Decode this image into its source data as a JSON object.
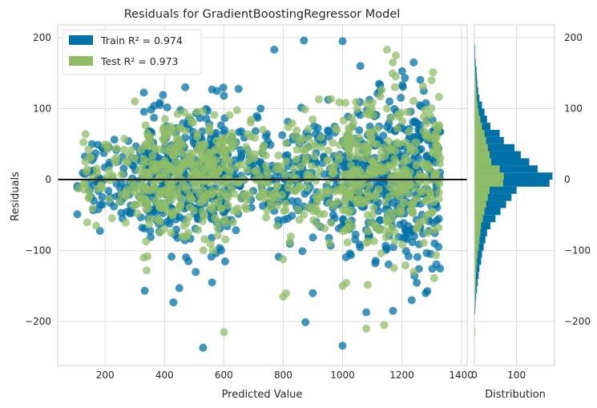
{
  "chart_data": [
    {
      "type": "scatter",
      "title": "Residuals for GradientBoostingRegressor Model",
      "xlabel": "Predicted Value",
      "ylabel": "Residuals",
      "xlim": [
        40,
        1420
      ],
      "ylim": [
        -262,
        218
      ],
      "x_ticks": [
        200,
        400,
        600,
        800,
        1000,
        1200,
        1400
      ],
      "x_tick_labels": [
        "200",
        "400",
        "600",
        "800",
        "1000",
        "1200",
        "1400"
      ],
      "y_ticks": [
        -200,
        -100,
        0,
        100,
        200
      ],
      "y_tick_labels": [
        "−200",
        "−100",
        "0",
        "100",
        "200"
      ],
      "grid": true,
      "legend_position": "top-left",
      "reference_line_y": 0,
      "series": [
        {
          "name": "Train",
          "legend_label": "Train R² = 0.974",
          "color": "#0072a7",
          "cluster_centers_x": [
            300,
            460,
            600,
            830,
            1130,
            1210
          ],
          "clusters": [
            {
              "x_range": [
                105,
                330
              ],
              "y_center": 0,
              "y_spread": 30,
              "count": 90
            },
            {
              "x_range": [
                330,
                620
              ],
              "y_center": 0,
              "y_spread": 45,
              "count": 360
            },
            {
              "x_range": [
                620,
                900
              ],
              "y_center": 5,
              "y_spread": 40,
              "count": 170
            },
            {
              "x_range": [
                900,
                1000
              ],
              "y_center": 0,
              "y_spread": 45,
              "count": 60
            },
            {
              "x_range": [
                1000,
                1330
              ],
              "y_center": 0,
              "y_spread": 60,
              "count": 420
            }
          ],
          "outliers": [
            {
              "x": 770,
              "y": 183
            },
            {
              "x": 1000,
              "y": 195
            },
            {
              "x": 870,
              "y": 196
            },
            {
              "x": 530,
              "y": -237
            },
            {
              "x": 1000,
              "y": -234
            },
            {
              "x": 875,
              "y": -201
            },
            {
              "x": 470,
              "y": 130
            },
            {
              "x": 560,
              "y": 127
            },
            {
              "x": 600,
              "y": 118
            },
            {
              "x": 430,
              "y": -173
            },
            {
              "x": 450,
              "y": -153
            },
            {
              "x": 560,
              "y": -145
            },
            {
              "x": 1080,
              "y": -187
            },
            {
              "x": 1170,
              "y": -185
            },
            {
              "x": 1280,
              "y": -160
            },
            {
              "x": 1240,
              "y": 165
            },
            {
              "x": 1310,
              "y": -90
            },
            {
              "x": 900,
              "y": -160
            }
          ]
        },
        {
          "name": "Test",
          "legend_label": "Test R² = 0.973",
          "color": "#8fbc67",
          "clusters": [
            {
              "x_range": [
                110,
                330
              ],
              "y_center": 0,
              "y_spread": 30,
              "count": 70
            },
            {
              "x_range": [
                330,
                620
              ],
              "y_center": 5,
              "y_spread": 40,
              "count": 330
            },
            {
              "x_range": [
                620,
                900
              ],
              "y_center": 5,
              "y_spread": 40,
              "count": 130
            },
            {
              "x_range": [
                900,
                1000
              ],
              "y_center": 5,
              "y_spread": 40,
              "count": 50
            },
            {
              "x_range": [
                1000,
                1330
              ],
              "y_center": 0,
              "y_spread": 60,
              "count": 330
            }
          ],
          "outliers": [
            {
              "x": 1080,
              "y": -210
            },
            {
              "x": 1140,
              "y": -205
            },
            {
              "x": 600,
              "y": -215
            },
            {
              "x": 800,
              "y": -165
            },
            {
              "x": 810,
              "y": -160
            },
            {
              "x": 1180,
              "y": 175
            },
            {
              "x": 1170,
              "y": 165
            },
            {
              "x": 1300,
              "y": 140
            },
            {
              "x": 1150,
              "y": 183
            },
            {
              "x": 170,
              "y": -65
            },
            {
              "x": 1240,
              "y": -130
            },
            {
              "x": 920,
              "y": 113
            },
            {
              "x": 300,
              "y": 110
            },
            {
              "x": 1000,
              "y": -150
            },
            {
              "x": 330,
              "y": -110
            }
          ]
        }
      ]
    },
    {
      "type": "bar",
      "orientation": "horizontal",
      "title": "",
      "xlabel": "Distribution",
      "xlim": [
        0,
        190
      ],
      "x_ticks": [
        0,
        100
      ],
      "x_tick_labels": [
        "0",
        "100"
      ],
      "y_tick_labels": [
        "200",
        "100",
        "0",
        "−100",
        "−200"
      ],
      "y_ticks": [
        200,
        100,
        0,
        -100,
        -200
      ],
      "bin_width": 10,
      "series": [
        {
          "name": "Train",
          "color": "#0072a7",
          "bins": [
            {
              "y0": -250,
              "count": 1
            },
            {
              "y0": -240,
              "count": 0
            },
            {
              "y0": -230,
              "count": 1
            },
            {
              "y0": -220,
              "count": 0
            },
            {
              "y0": -210,
              "count": 1
            },
            {
              "y0": -200,
              "count": 1
            },
            {
              "y0": -190,
              "count": 2
            },
            {
              "y0": -180,
              "count": 3
            },
            {
              "y0": -170,
              "count": 4
            },
            {
              "y0": -160,
              "count": 6
            },
            {
              "y0": -150,
              "count": 8
            },
            {
              "y0": -140,
              "count": 10
            },
            {
              "y0": -130,
              "count": 12
            },
            {
              "y0": -120,
              "count": 16
            },
            {
              "y0": -110,
              "count": 18
            },
            {
              "y0": -100,
              "count": 22
            },
            {
              "y0": -90,
              "count": 26
            },
            {
              "y0": -80,
              "count": 30
            },
            {
              "y0": -70,
              "count": 38
            },
            {
              "y0": -60,
              "count": 50
            },
            {
              "y0": -50,
              "count": 62
            },
            {
              "y0": -40,
              "count": 75
            },
            {
              "y0": -30,
              "count": 88
            },
            {
              "y0": -20,
              "count": 100
            },
            {
              "y0": -10,
              "count": 178
            },
            {
              "y0": 0,
              "count": 185
            },
            {
              "y0": 10,
              "count": 150
            },
            {
              "y0": 20,
              "count": 130
            },
            {
              "y0": 30,
              "count": 110
            },
            {
              "y0": 40,
              "count": 95
            },
            {
              "y0": 50,
              "count": 70
            },
            {
              "y0": 60,
              "count": 60
            },
            {
              "y0": 70,
              "count": 38
            },
            {
              "y0": 80,
              "count": 30
            },
            {
              "y0": 90,
              "count": 24
            },
            {
              "y0": 100,
              "count": 18
            },
            {
              "y0": 110,
              "count": 12
            },
            {
              "y0": 120,
              "count": 9
            },
            {
              "y0": 130,
              "count": 7
            },
            {
              "y0": 140,
              "count": 6
            },
            {
              "y0": 150,
              "count": 5
            },
            {
              "y0": 160,
              "count": 3
            },
            {
              "y0": 170,
              "count": 2
            },
            {
              "y0": 180,
              "count": 2
            },
            {
              "y0": 190,
              "count": 1
            }
          ]
        },
        {
          "name": "Test",
          "color": "#8fbc67",
          "bins": [
            {
              "y0": -220,
              "count": 2
            },
            {
              "y0": -210,
              "count": 1
            },
            {
              "y0": -200,
              "count": 0
            },
            {
              "y0": -190,
              "count": 1
            },
            {
              "y0": -180,
              "count": 2
            },
            {
              "y0": -170,
              "count": 2
            },
            {
              "y0": -160,
              "count": 3
            },
            {
              "y0": -150,
              "count": 4
            },
            {
              "y0": -140,
              "count": 4
            },
            {
              "y0": -130,
              "count": 5
            },
            {
              "y0": -120,
              "count": 6
            },
            {
              "y0": -110,
              "count": 8
            },
            {
              "y0": -100,
              "count": 10
            },
            {
              "y0": -90,
              "count": 12
            },
            {
              "y0": -80,
              "count": 14
            },
            {
              "y0": -70,
              "count": 16
            },
            {
              "y0": -60,
              "count": 20
            },
            {
              "y0": -50,
              "count": 24
            },
            {
              "y0": -40,
              "count": 28
            },
            {
              "y0": -30,
              "count": 32
            },
            {
              "y0": -20,
              "count": 36
            },
            {
              "y0": -10,
              "count": 68
            },
            {
              "y0": 0,
              "count": 70
            },
            {
              "y0": 10,
              "count": 60
            },
            {
              "y0": 20,
              "count": 40
            },
            {
              "y0": 30,
              "count": 36
            },
            {
              "y0": 40,
              "count": 32
            },
            {
              "y0": 50,
              "count": 28
            },
            {
              "y0": 60,
              "count": 24
            },
            {
              "y0": 70,
              "count": 18
            },
            {
              "y0": 80,
              "count": 14
            },
            {
              "y0": 90,
              "count": 10
            },
            {
              "y0": 100,
              "count": 8
            },
            {
              "y0": 110,
              "count": 6
            },
            {
              "y0": 120,
              "count": 5
            },
            {
              "y0": 130,
              "count": 4
            },
            {
              "y0": 140,
              "count": 3
            },
            {
              "y0": 150,
              "count": 2
            },
            {
              "y0": 160,
              "count": 1
            }
          ]
        }
      ]
    }
  ]
}
